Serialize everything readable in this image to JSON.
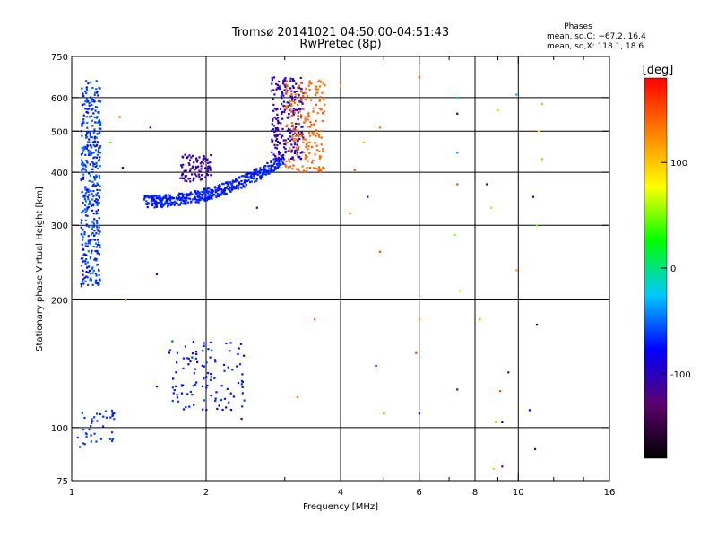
{
  "chart_data": {
    "type": "scatter",
    "title": "Tromsø 20141021 04:50:00-04:51:43",
    "subtitle": "RwPretec (8p)",
    "xlabel": "Frequency [MHz]",
    "ylabel": "Stationary phase Virtual Height [km]",
    "x_scale": "log",
    "y_scale": "log",
    "xlim": [
      1,
      16
    ],
    "ylim": [
      75,
      750
    ],
    "x_ticks": [
      1,
      2,
      4,
      6,
      8,
      10,
      16
    ],
    "x_tick_labels": [
      "1",
      "2",
      "4",
      "6",
      "8",
      "10",
      "16"
    ],
    "x_minor_ticks": [
      3,
      5,
      7,
      9,
      12,
      14
    ],
    "y_ticks": [
      75,
      100,
      200,
      300,
      400,
      500,
      600,
      750
    ],
    "y_tick_labels": [
      "75",
      "100",
      "200",
      "300",
      "400",
      "500",
      "600",
      "750"
    ],
    "grid": true,
    "phases_box": {
      "heading": "Phases",
      "line1": "mean, sd,O: −67.2, 16.4",
      "line2": "mean, sd,X: 118.1, 18.6"
    },
    "colorbar": {
      "label": "[deg]",
      "range": [
        -180,
        180
      ],
      "ticks": [
        100,
        0,
        -100
      ],
      "tick_labels": [
        "100",
        "0",
        "-100"
      ],
      "colors": [
        "#000000",
        "#5c006e",
        "#0000ff",
        "#00c8ff",
        "#00ff00",
        "#ffff00",
        "#ff8000",
        "#ff0000"
      ]
    },
    "clusters": [
      {
        "x": [
          1.05,
          1.16
        ],
        "y": [
          215,
          660
        ],
        "n": 420,
        "phase": [
          -80,
          -45
        ]
      },
      {
        "x": [
          1.45,
          3.0
        ],
        "y": [
          330,
          430
        ],
        "n": 520,
        "phase": [
          -80,
          -60
        ]
      },
      {
        "x": [
          1.75,
          2.05
        ],
        "y": [
          380,
          440
        ],
        "n": 90,
        "phase": [
          -115,
          -100
        ]
      },
      {
        "x": [
          2.8,
          3.3
        ],
        "y": [
          430,
          670
        ],
        "n": 220,
        "phase": [
          -115,
          -85
        ]
      },
      {
        "x": [
          3.0,
          3.7
        ],
        "y": [
          400,
          660
        ],
        "n": 200,
        "phase": [
          130,
          150
        ]
      },
      {
        "x": [
          1.65,
          2.45
        ],
        "y": [
          110,
          160
        ],
        "n": 110,
        "phase": [
          -85,
          -60
        ]
      },
      {
        "x": [
          1.02,
          1.25
        ],
        "y": [
          90,
          110
        ],
        "n": 40,
        "phase": [
          -75,
          -55
        ]
      }
    ],
    "scattered_points": [
      {
        "x": 1.28,
        "y": 540,
        "phase": 150
      },
      {
        "x": 1.22,
        "y": 470,
        "phase": 40
      },
      {
        "x": 1.3,
        "y": 410,
        "phase": -160
      },
      {
        "x": 1.5,
        "y": 510,
        "phase": -130
      },
      {
        "x": 1.55,
        "y": 230,
        "phase": -100
      },
      {
        "x": 1.55,
        "y": 125,
        "phase": -110
      },
      {
        "x": 1.32,
        "y": 200,
        "phase": 110
      },
      {
        "x": 2.4,
        "y": 105,
        "phase": -110
      },
      {
        "x": 2.6,
        "y": 330,
        "phase": -110
      },
      {
        "x": 3.2,
        "y": 118,
        "phase": 130
      },
      {
        "x": 3.5,
        "y": 180,
        "phase": 150
      },
      {
        "x": 4.0,
        "y": 640,
        "phase": 110
      },
      {
        "x": 4.3,
        "y": 405,
        "phase": 150
      },
      {
        "x": 4.2,
        "y": 320,
        "phase": 150
      },
      {
        "x": 4.5,
        "y": 470,
        "phase": 110
      },
      {
        "x": 4.6,
        "y": 350,
        "phase": -120
      },
      {
        "x": 4.8,
        "y": 140,
        "phase": -100
      },
      {
        "x": 4.9,
        "y": 510,
        "phase": 130
      },
      {
        "x": 5.0,
        "y": 108,
        "phase": 130
      },
      {
        "x": 4.9,
        "y": 260,
        "phase": 150
      },
      {
        "x": 6.0,
        "y": 670,
        "phase": 150
      },
      {
        "x": 6.0,
        "y": 180,
        "phase": 120
      },
      {
        "x": 6.0,
        "y": 108,
        "phase": -100
      },
      {
        "x": 7.3,
        "y": 550,
        "phase": -150
      },
      {
        "x": 7.3,
        "y": 600,
        "phase": 20
      },
      {
        "x": 7.3,
        "y": 445,
        "phase": -40
      },
      {
        "x": 7.3,
        "y": 375,
        "phase": 150
      },
      {
        "x": 7.2,
        "y": 285,
        "phase": 50
      },
      {
        "x": 7.4,
        "y": 210,
        "phase": 100
      },
      {
        "x": 7.3,
        "y": 123,
        "phase": -120
      },
      {
        "x": 8.5,
        "y": 375,
        "phase": -140
      },
      {
        "x": 8.7,
        "y": 330,
        "phase": 60
      },
      {
        "x": 8.9,
        "y": 103,
        "phase": 100
      },
      {
        "x": 9.2,
        "y": 103,
        "phase": -80
      },
      {
        "x": 9.5,
        "y": 135,
        "phase": -140
      },
      {
        "x": 9.0,
        "y": 560,
        "phase": 100
      },
      {
        "x": 9.1,
        "y": 122,
        "phase": 150
      },
      {
        "x": 8.8,
        "y": 80,
        "phase": 100
      },
      {
        "x": 9.2,
        "y": 81,
        "phase": -120
      },
      {
        "x": 9.9,
        "y": 235,
        "phase": 110
      },
      {
        "x": 9.9,
        "y": 610,
        "phase": -30
      },
      {
        "x": 10.8,
        "y": 350,
        "phase": -110
      },
      {
        "x": 10.6,
        "y": 110,
        "phase": -80
      },
      {
        "x": 11.0,
        "y": 175,
        "phase": -170
      },
      {
        "x": 11.3,
        "y": 580,
        "phase": 110
      },
      {
        "x": 11.1,
        "y": 500,
        "phase": 80
      },
      {
        "x": 11.3,
        "y": 430,
        "phase": 110
      },
      {
        "x": 11.0,
        "y": 300,
        "phase": 50
      },
      {
        "x": 10.9,
        "y": 89,
        "phase": -120
      },
      {
        "x": 8.2,
        "y": 180,
        "phase": 110
      },
      {
        "x": 5.9,
        "y": 150,
        "phase": 150
      }
    ]
  }
}
